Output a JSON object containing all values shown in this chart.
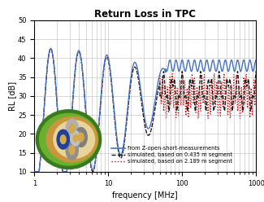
{
  "title": "Return Loss in TPC",
  "xlabel": "frequency [MHz]",
  "ylabel": "RL [dB]",
  "xlim": [
    1,
    1000
  ],
  "ylim": [
    10,
    50
  ],
  "yticks": [
    10,
    15,
    20,
    25,
    30,
    35,
    40,
    45,
    50
  ],
  "legend": [
    {
      "label": "from Z-open-short-measurements",
      "color": "#4472C4",
      "ls": "-",
      "lw": 1.0
    },
    {
      "label": "simulated, based on 0.435 m segment",
      "color": "#1A1A1A",
      "ls": "--",
      "lw": 0.9
    },
    {
      "label": "simulated, based on 2.189 m segment",
      "color": "#CC0000",
      "ls": ":",
      "lw": 0.9
    }
  ],
  "bg_color": "#FFFFFF",
  "grid_color": "#BBBBBB"
}
